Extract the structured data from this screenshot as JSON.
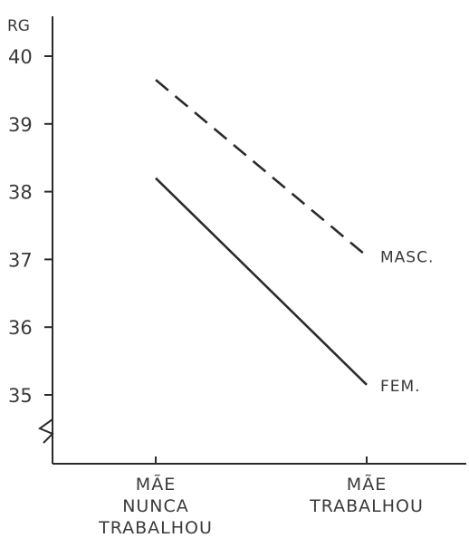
{
  "chart_data": {
    "type": "line",
    "ylabel": "RG",
    "ylim": [
      35,
      40
    ],
    "yticks": [
      35,
      36,
      37,
      38,
      39,
      40
    ],
    "categories": [
      {
        "lines": [
          "MÃE",
          "NUNCA",
          "TRABALHOU"
        ]
      },
      {
        "lines": [
          "MÃE",
          "TRABALHOU"
        ]
      }
    ],
    "series": [
      {
        "name": "MASC.",
        "style": "dashed",
        "values": [
          39.65,
          37.05
        ]
      },
      {
        "name": "FEM.",
        "style": "solid",
        "values": [
          38.2,
          35.15
        ]
      }
    ],
    "axis_break": true,
    "grid": false,
    "colors": {
      "ink": "#2b2b2b"
    }
  }
}
